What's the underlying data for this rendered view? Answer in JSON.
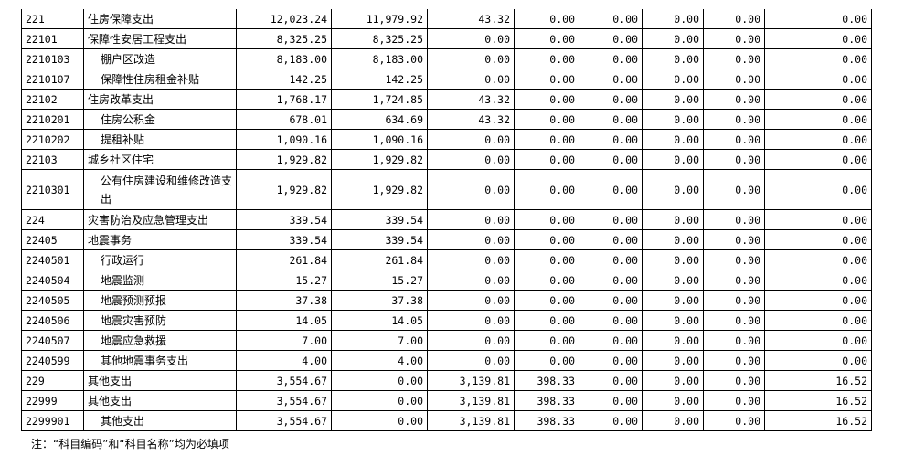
{
  "rows": [
    {
      "code": "221",
      "name": "住房保障支出",
      "indent": false,
      "values": [
        "12,023.24",
        "11,979.92",
        "43.32",
        "0.00",
        "0.00",
        "0.00",
        "0.00",
        "0.00"
      ]
    },
    {
      "code": "22101",
      "name": "保障性安居工程支出",
      "indent": false,
      "values": [
        "8,325.25",
        "8,325.25",
        "0.00",
        "0.00",
        "0.00",
        "0.00",
        "0.00",
        "0.00"
      ]
    },
    {
      "code": "2210103",
      "name": "棚户区改造",
      "indent": true,
      "values": [
        "8,183.00",
        "8,183.00",
        "0.00",
        "0.00",
        "0.00",
        "0.00",
        "0.00",
        "0.00"
      ]
    },
    {
      "code": "2210107",
      "name": "保障性住房租金补贴",
      "indent": true,
      "values": [
        "142.25",
        "142.25",
        "0.00",
        "0.00",
        "0.00",
        "0.00",
        "0.00",
        "0.00"
      ]
    },
    {
      "code": "22102",
      "name": "住房改革支出",
      "indent": false,
      "values": [
        "1,768.17",
        "1,724.85",
        "43.32",
        "0.00",
        "0.00",
        "0.00",
        "0.00",
        "0.00"
      ]
    },
    {
      "code": "2210201",
      "name": "住房公积金",
      "indent": true,
      "values": [
        "678.01",
        "634.69",
        "43.32",
        "0.00",
        "0.00",
        "0.00",
        "0.00",
        "0.00"
      ]
    },
    {
      "code": "2210202",
      "name": "提租补贴",
      "indent": true,
      "values": [
        "1,090.16",
        "1,090.16",
        "0.00",
        "0.00",
        "0.00",
        "0.00",
        "0.00",
        "0.00"
      ]
    },
    {
      "code": "22103",
      "name": "城乡社区住宅",
      "indent": false,
      "values": [
        "1,929.82",
        "1,929.82",
        "0.00",
        "0.00",
        "0.00",
        "0.00",
        "0.00",
        "0.00"
      ]
    },
    {
      "code": "2210301",
      "name": "公有住房建设和维修改造支出",
      "indent": true,
      "tall": true,
      "values": [
        "1,929.82",
        "1,929.82",
        "0.00",
        "0.00",
        "0.00",
        "0.00",
        "0.00",
        "0.00"
      ]
    },
    {
      "code": "224",
      "name": "灾害防治及应急管理支出",
      "indent": false,
      "values": [
        "339.54",
        "339.54",
        "0.00",
        "0.00",
        "0.00",
        "0.00",
        "0.00",
        "0.00"
      ]
    },
    {
      "code": "22405",
      "name": "地震事务",
      "indent": false,
      "values": [
        "339.54",
        "339.54",
        "0.00",
        "0.00",
        "0.00",
        "0.00",
        "0.00",
        "0.00"
      ]
    },
    {
      "code": "2240501",
      "name": "行政运行",
      "indent": true,
      "values": [
        "261.84",
        "261.84",
        "0.00",
        "0.00",
        "0.00",
        "0.00",
        "0.00",
        "0.00"
      ]
    },
    {
      "code": "2240504",
      "name": "地震监测",
      "indent": true,
      "values": [
        "15.27",
        "15.27",
        "0.00",
        "0.00",
        "0.00",
        "0.00",
        "0.00",
        "0.00"
      ]
    },
    {
      "code": "2240505",
      "name": "地震预测预报",
      "indent": true,
      "values": [
        "37.38",
        "37.38",
        "0.00",
        "0.00",
        "0.00",
        "0.00",
        "0.00",
        "0.00"
      ]
    },
    {
      "code": "2240506",
      "name": "地震灾害预防",
      "indent": true,
      "values": [
        "14.05",
        "14.05",
        "0.00",
        "0.00",
        "0.00",
        "0.00",
        "0.00",
        "0.00"
      ]
    },
    {
      "code": "2240507",
      "name": "地震应急救援",
      "indent": true,
      "values": [
        "7.00",
        "7.00",
        "0.00",
        "0.00",
        "0.00",
        "0.00",
        "0.00",
        "0.00"
      ]
    },
    {
      "code": "2240599",
      "name": "其他地震事务支出",
      "indent": true,
      "values": [
        "4.00",
        "4.00",
        "0.00",
        "0.00",
        "0.00",
        "0.00",
        "0.00",
        "0.00"
      ]
    },
    {
      "code": "229",
      "name": "其他支出",
      "indent": false,
      "values": [
        "3,554.67",
        "0.00",
        "3,139.81",
        "398.33",
        "0.00",
        "0.00",
        "0.00",
        "16.52"
      ]
    },
    {
      "code": "22999",
      "name": "其他支出",
      "indent": false,
      "values": [
        "3,554.67",
        "0.00",
        "3,139.81",
        "398.33",
        "0.00",
        "0.00",
        "0.00",
        "16.52"
      ]
    },
    {
      "code": "2299901",
      "name": "其他支出",
      "indent": true,
      "values": [
        "3,554.67",
        "0.00",
        "3,139.81",
        "398.33",
        "0.00",
        "0.00",
        "0.00",
        "16.52"
      ]
    }
  ],
  "note": "注：“科目编码”和“科目名称”均为必填项"
}
